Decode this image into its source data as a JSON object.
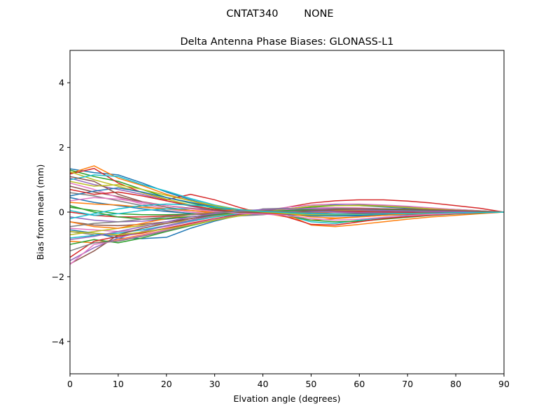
{
  "chart_data": {
    "type": "line",
    "suptitle": "CNTAT340        NONE",
    "title": "Delta Antenna Phase Biases: GLONASS-L1",
    "xlabel": "Elvation angle (degrees)",
    "ylabel": "Bias from mean (mm)",
    "xlim": [
      0,
      90
    ],
    "ylim": [
      -5,
      5
    ],
    "x_ticks": [
      0,
      10,
      20,
      30,
      40,
      50,
      60,
      70,
      80,
      90
    ],
    "y_ticks": [
      -4,
      -2,
      0,
      2,
      4
    ],
    "y_tick_labels": [
      "−4",
      "−2",
      "0",
      "2",
      "4"
    ],
    "grid": false,
    "legend": "none",
    "x": [
      0,
      5,
      10,
      15,
      20,
      25,
      30,
      35,
      40,
      45,
      50,
      55,
      60,
      65,
      70,
      75,
      80,
      85,
      90
    ],
    "colors": [
      "#1f77b4",
      "#ff7f0e",
      "#2ca02c",
      "#d62728",
      "#9467bd",
      "#8c564b",
      "#e377c2",
      "#7f7f7f",
      "#bcbd22",
      "#17becf"
    ],
    "series": [
      {
        "values": [
          1.34,
          1.22,
          1.15,
          0.9,
          0.62,
          0.38,
          0.18,
          0.05,
          0.0,
          -0.05,
          -0.1,
          -0.12,
          -0.12,
          -0.1,
          -0.08,
          -0.06,
          -0.04,
          -0.02,
          0
        ]
      },
      {
        "values": [
          1.2,
          1.43,
          1.05,
          0.82,
          0.55,
          0.35,
          0.15,
          0.02,
          -0.03,
          -0.15,
          -0.25,
          -0.2,
          -0.15,
          -0.1,
          -0.06,
          -0.04,
          -0.02,
          -0.01,
          0
        ]
      },
      {
        "values": [
          1.3,
          1.1,
          0.95,
          0.7,
          0.45,
          0.28,
          0.12,
          0.0,
          0.02,
          0.08,
          0.15,
          0.2,
          0.22,
          0.2,
          0.16,
          0.12,
          0.08,
          0.04,
          0
        ]
      },
      {
        "values": [
          1.18,
          1.35,
          0.9,
          0.6,
          0.38,
          0.55,
          0.38,
          0.15,
          -0.05,
          0.15,
          0.28,
          0.35,
          0.38,
          0.38,
          0.34,
          0.28,
          0.2,
          0.12,
          0
        ]
      },
      {
        "values": [
          1.05,
          0.85,
          0.7,
          0.55,
          0.35,
          0.18,
          0.05,
          -0.05,
          -0.02,
          0.05,
          0.1,
          0.12,
          0.12,
          0.1,
          0.08,
          0.06,
          0.04,
          0.02,
          0
        ]
      },
      {
        "values": [
          0.8,
          0.62,
          0.48,
          0.3,
          0.15,
          0.05,
          -0.02,
          -0.06,
          -0.03,
          0.02,
          0.05,
          0.07,
          0.07,
          0.06,
          0.05,
          0.04,
          0.03,
          0.02,
          0
        ]
      },
      {
        "values": [
          0.9,
          0.7,
          0.45,
          0.25,
          0.1,
          0.0,
          -0.05,
          -0.08,
          -0.06,
          -0.02,
          0.02,
          0.04,
          0.05,
          0.05,
          0.04,
          0.03,
          0.02,
          0.01,
          0
        ]
      },
      {
        "values": [
          0.6,
          0.5,
          0.35,
          0.2,
          0.05,
          -0.05,
          -0.1,
          -0.12,
          -0.08,
          -0.02,
          0.03,
          0.06,
          0.07,
          0.07,
          0.06,
          0.05,
          0.03,
          0.02,
          0
        ]
      },
      {
        "values": [
          1.25,
          1.0,
          0.8,
          0.6,
          0.4,
          0.22,
          0.08,
          -0.02,
          -0.02,
          0.03,
          0.08,
          0.1,
          0.1,
          0.09,
          0.07,
          0.05,
          0.03,
          0.02,
          0
        ]
      },
      {
        "values": [
          1.0,
          1.15,
          1.1,
          0.85,
          0.65,
          0.42,
          0.22,
          0.08,
          0.0,
          -0.06,
          -0.1,
          -0.08,
          -0.05,
          -0.03,
          -0.02,
          -0.01,
          0.0,
          0.0,
          0
        ]
      },
      {
        "values": [
          0.45,
          0.3,
          0.2,
          0.1,
          0.02,
          -0.04,
          -0.08,
          -0.08,
          -0.05,
          -0.02,
          0.0,
          0.02,
          0.03,
          0.03,
          0.03,
          0.02,
          0.02,
          0.01,
          0
        ]
      },
      {
        "values": [
          0.3,
          0.25,
          0.22,
          0.15,
          0.1,
          0.05,
          0.0,
          -0.04,
          -0.05,
          -0.04,
          -0.02,
          0.0,
          0.02,
          0.02,
          0.02,
          0.02,
          0.01,
          0.01,
          0
        ]
      },
      {
        "values": [
          0.15,
          0.05,
          -0.05,
          -0.08,
          -0.08,
          -0.06,
          -0.04,
          -0.02,
          0.0,
          0.02,
          0.03,
          0.03,
          0.03,
          0.02,
          0.02,
          0.01,
          0.01,
          0.0,
          0
        ]
      },
      {
        "values": [
          0.0,
          -0.1,
          -0.15,
          -0.15,
          -0.12,
          -0.08,
          -0.04,
          -0.01,
          0.01,
          0.02,
          0.03,
          0.03,
          0.02,
          0.02,
          0.01,
          0.01,
          0.0,
          0.0,
          0
        ]
      },
      {
        "values": [
          -0.15,
          -0.25,
          -0.3,
          -0.28,
          -0.22,
          -0.15,
          -0.08,
          -0.03,
          0.0,
          0.02,
          0.04,
          0.05,
          0.05,
          0.04,
          0.03,
          0.02,
          0.01,
          0.01,
          0
        ]
      },
      {
        "values": [
          -0.3,
          -0.4,
          -0.42,
          -0.38,
          -0.3,
          -0.2,
          -0.1,
          -0.03,
          0.02,
          0.05,
          0.06,
          0.06,
          0.05,
          0.04,
          0.03,
          0.02,
          0.01,
          0.01,
          0
        ]
      },
      {
        "values": [
          -0.5,
          -0.55,
          -0.6,
          -0.55,
          -0.45,
          -0.3,
          -0.15,
          -0.05,
          0.05,
          0.15,
          0.22,
          0.25,
          0.25,
          0.22,
          0.18,
          0.13,
          0.08,
          0.04,
          0
        ]
      },
      {
        "values": [
          -0.6,
          -0.7,
          -0.72,
          -0.62,
          -0.5,
          -0.35,
          -0.2,
          -0.08,
          0.1,
          0.12,
          0.06,
          0.0,
          -0.02,
          -0.03,
          -0.03,
          -0.02,
          -0.02,
          -0.01,
          0
        ]
      },
      {
        "values": [
          -0.7,
          -0.6,
          -0.5,
          -0.42,
          -0.35,
          -0.25,
          -0.12,
          -0.02,
          0.05,
          0.08,
          0.08,
          0.07,
          0.06,
          0.05,
          0.04,
          0.03,
          0.02,
          0.01,
          0
        ]
      },
      {
        "values": [
          -0.8,
          -0.72,
          -0.65,
          -0.55,
          -0.42,
          -0.28,
          -0.15,
          -0.05,
          0.03,
          -0.1,
          -0.3,
          -0.35,
          -0.25,
          -0.18,
          -0.12,
          -0.08,
          -0.05,
          -0.02,
          0
        ]
      },
      {
        "values": [
          -0.55,
          -0.65,
          -0.8,
          -0.82,
          -0.78,
          -0.5,
          -0.28,
          -0.1,
          0.0,
          0.1,
          0.18,
          0.22,
          0.2,
          0.16,
          0.12,
          0.08,
          0.05,
          0.02,
          0
        ]
      },
      {
        "values": [
          -0.9,
          -0.95,
          -0.85,
          -0.7,
          -0.55,
          -0.38,
          -0.22,
          -0.08,
          0.04,
          -0.08,
          -0.4,
          -0.45,
          -0.38,
          -0.3,
          -0.22,
          -0.15,
          -0.1,
          -0.05,
          0
        ]
      },
      {
        "values": [
          -1.0,
          -0.85,
          -0.95,
          -0.8,
          -0.6,
          -0.42,
          -0.25,
          -0.12,
          0.0,
          -0.1,
          -0.25,
          -0.3,
          -0.28,
          -0.22,
          -0.16,
          -0.1,
          -0.06,
          -0.03,
          0
        ]
      },
      {
        "values": [
          -1.4,
          -0.9,
          -0.75,
          -0.65,
          -0.5,
          -0.35,
          -0.2,
          -0.08,
          0.02,
          -0.15,
          -0.38,
          -0.4,
          -0.3,
          -0.2,
          -0.14,
          -0.09,
          -0.05,
          -0.02,
          0
        ]
      },
      {
        "values": [
          -1.5,
          -1.1,
          -0.8,
          -0.6,
          -0.42,
          -0.25,
          -0.1,
          0.0,
          0.06,
          0.05,
          0.02,
          0.0,
          -0.01,
          -0.01,
          -0.01,
          0.0,
          0.0,
          0.0,
          0
        ]
      },
      {
        "values": [
          -1.6,
          -1.2,
          -0.7,
          -0.5,
          -0.35,
          -0.2,
          -0.08,
          0.0,
          0.05,
          0.08,
          0.1,
          0.1,
          0.08,
          0.06,
          0.04,
          0.03,
          0.02,
          0.01,
          0
        ]
      },
      {
        "values": [
          -1.62,
          -1.0,
          -0.88,
          -0.72,
          -0.55,
          -0.38,
          -0.22,
          -0.1,
          0.0,
          0.08,
          0.12,
          0.14,
          0.13,
          0.1,
          0.08,
          0.05,
          0.03,
          0.02,
          0
        ]
      },
      {
        "values": [
          -1.2,
          -0.95,
          -0.9,
          -0.75,
          -0.58,
          -0.4,
          -0.24,
          -0.1,
          0.0,
          0.05,
          0.08,
          0.1,
          0.1,
          0.08,
          0.06,
          0.04,
          0.02,
          0.01,
          0
        ]
      },
      {
        "values": [
          -0.6,
          -0.65,
          -0.7,
          -0.62,
          -0.52,
          -0.4,
          -0.25,
          -0.12,
          0.0,
          0.1,
          0.18,
          0.2,
          0.2,
          0.18,
          0.14,
          0.1,
          0.06,
          0.03,
          0
        ]
      },
      {
        "values": [
          0.05,
          -0.1,
          -0.05,
          0.05,
          0.1,
          0.1,
          0.08,
          0.04,
          0.0,
          -0.04,
          -0.08,
          -0.1,
          -0.1,
          -0.08,
          -0.06,
          -0.04,
          -0.02,
          -0.01,
          0
        ]
      },
      {
        "values": [
          0.5,
          0.65,
          0.75,
          0.62,
          0.45,
          0.3,
          0.16,
          0.05,
          -0.02,
          -0.08,
          -0.12,
          -0.12,
          -0.1,
          -0.08,
          -0.06,
          -0.04,
          -0.02,
          -0.01,
          0
        ]
      },
      {
        "values": [
          -0.3,
          -0.45,
          -0.5,
          -0.35,
          -0.2,
          -0.08,
          0.02,
          0.08,
          0.05,
          -0.05,
          -0.15,
          -0.18,
          -0.15,
          -0.1,
          -0.06,
          -0.04,
          -0.02,
          -0.01,
          0
        ]
      },
      {
        "values": [
          0.2,
          0.0,
          -0.15,
          -0.22,
          -0.2,
          -0.14,
          -0.08,
          -0.02,
          0.02,
          0.05,
          0.08,
          0.1,
          0.1,
          0.09,
          0.07,
          0.05,
          0.03,
          0.02,
          0
        ]
      },
      {
        "values": [
          0.7,
          0.55,
          0.62,
          0.5,
          0.35,
          0.2,
          0.08,
          0.0,
          -0.04,
          -0.06,
          -0.06,
          -0.05,
          -0.04,
          -0.03,
          -0.02,
          -0.01,
          -0.01,
          0.0,
          0
        ]
      },
      {
        "values": [
          -0.85,
          -0.75,
          -0.6,
          -0.45,
          -0.3,
          -0.15,
          -0.05,
          0.03,
          0.08,
          0.1,
          0.1,
          0.09,
          0.07,
          0.05,
          0.04,
          0.03,
          0.02,
          0.01,
          0
        ]
      },
      {
        "values": [
          1.1,
          0.95,
          0.55,
          0.32,
          0.2,
          0.12,
          0.05,
          0.0,
          -0.02,
          0.0,
          0.04,
          0.08,
          0.1,
          0.1,
          0.09,
          0.07,
          0.05,
          0.03,
          0
        ]
      },
      {
        "values": [
          0.35,
          0.45,
          0.4,
          0.3,
          0.2,
          0.1,
          0.02,
          -0.04,
          -0.06,
          -0.1,
          -0.2,
          -0.25,
          -0.22,
          -0.16,
          -0.11,
          -0.07,
          -0.04,
          -0.02,
          0
        ]
      },
      {
        "values": [
          -0.45,
          -0.35,
          -0.3,
          -0.22,
          -0.15,
          -0.08,
          -0.02,
          0.02,
          0.04,
          0.02,
          -0.02,
          -0.05,
          -0.06,
          -0.05,
          -0.04,
          -0.03,
          -0.02,
          -0.01,
          0
        ]
      },
      {
        "values": [
          0.95,
          0.8,
          0.85,
          0.7,
          0.52,
          0.35,
          0.2,
          0.08,
          0.0,
          -0.05,
          -0.08,
          -0.08,
          -0.07,
          -0.05,
          -0.04,
          -0.03,
          -0.02,
          -0.01,
          0
        ]
      },
      {
        "values": [
          -0.2,
          -0.05,
          0.1,
          0.2,
          0.25,
          0.22,
          0.16,
          0.08,
          0.02,
          -0.02,
          -0.05,
          -0.06,
          -0.06,
          -0.05,
          -0.04,
          -0.03,
          -0.02,
          -0.01,
          0
        ]
      }
    ]
  }
}
